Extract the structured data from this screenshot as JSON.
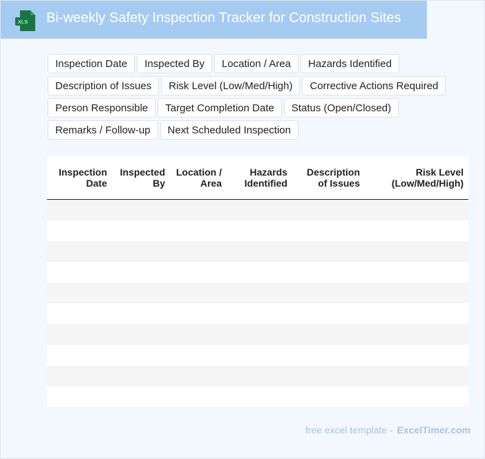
{
  "header": {
    "icon_label": "XLS",
    "title": "Bi-weekly Safety Inspection Tracker for Construction Sites",
    "color": "#a6cbf1"
  },
  "fields": [
    "Inspection Date",
    "Inspected By",
    "Location / Area",
    "Hazards Identified",
    "Description of Issues",
    "Risk Level (Low/Med/High)",
    "Corrective Actions Required",
    "Person Responsible",
    "Target Completion Date",
    "Status (Open/Closed)",
    "Remarks / Follow-up",
    "Next Scheduled Inspection"
  ],
  "table": {
    "columns": [
      [
        "Inspection",
        "Date"
      ],
      [
        "Inspected",
        "By"
      ],
      [
        "Location /",
        "Area"
      ],
      [
        "Hazards",
        "Identified"
      ],
      [
        "Description",
        "of Issues"
      ],
      [
        "Risk Level",
        "(Low/Med/High)"
      ]
    ],
    "rows": 10
  },
  "footer": {
    "prefix": "free excel template -",
    "brand": "ExcelTimer.com"
  }
}
